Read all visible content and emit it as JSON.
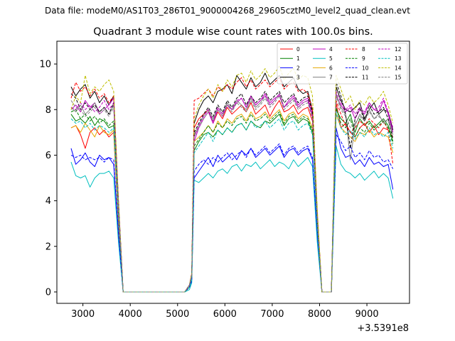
{
  "chart_data": {
    "type": "line",
    "suptitle": "Data file: modeM0/AS1T03_286T01_9000004268_29605cztM0_level2_quad_clean.evt",
    "title": "Quadrant 3 module wise count rates with 100.0s bins.",
    "xlabel": "",
    "ylabel": "",
    "x_offset_label": "+3.5391e8",
    "xlim": [
      2450,
      9900
    ],
    "ylim": [
      -0.5,
      11.0
    ],
    "xticks": [
      3000,
      4000,
      5000,
      6000,
      7000,
      8000,
      9000
    ],
    "yticks": [
      0,
      2,
      4,
      6,
      8,
      10
    ],
    "legend_position": "top-right",
    "x": [
      2750,
      2850,
      2950,
      3050,
      3150,
      3250,
      3350,
      3450,
      3550,
      3650,
      3750,
      3850,
      3950,
      4050,
      4150,
      4250,
      4350,
      4450,
      4550,
      4650,
      4750,
      4850,
      4950,
      5050,
      5150,
      5250,
      5300,
      5350,
      5450,
      5550,
      5650,
      5750,
      5850,
      5950,
      6050,
      6150,
      6250,
      6350,
      6450,
      6550,
      6650,
      6750,
      6850,
      6950,
      7050,
      7150,
      7250,
      7350,
      7450,
      7550,
      7650,
      7750,
      7850,
      7950,
      8050,
      8150,
      8250,
      8350,
      8450,
      8550,
      8650,
      8750,
      8850,
      8950,
      9050,
      9150,
      9250,
      9350,
      9450,
      9550
    ],
    "series": [
      {
        "name": "0",
        "color": "#ff0000",
        "dash": false,
        "values": [
          7.2,
          7.3,
          6.9,
          6.3,
          7.0,
          7.2,
          6.9,
          7.1,
          6.8,
          7.0,
          3.0,
          0,
          0,
          0,
          0,
          0,
          0,
          0,
          0,
          0,
          0,
          0,
          0,
          0,
          0,
          0.2,
          0.7,
          7.2,
          7.6,
          7.8,
          8.0,
          7.4,
          7.9,
          7.6,
          8.1,
          7.8,
          8.0,
          8.2,
          7.9,
          8.3,
          7.8,
          8.0,
          8.2,
          7.7,
          8.1,
          8.4,
          7.9,
          8.0,
          8.2,
          7.8,
          8.0,
          8.1,
          7.5,
          3.0,
          0,
          0,
          0,
          8.3,
          7.2,
          7.4,
          7.0,
          6.8,
          7.2,
          7.4,
          7.0,
          7.3,
          6.9,
          7.2,
          7.1,
          6.8
        ]
      },
      {
        "name": "1",
        "color": "#008000",
        "dash": false,
        "values": [
          7.8,
          7.5,
          7.6,
          7.4,
          7.7,
          7.3,
          7.6,
          7.5,
          7.2,
          7.3,
          3.5,
          0,
          0,
          0,
          0,
          0,
          0,
          0,
          0,
          0,
          0,
          0,
          0,
          0,
          0,
          0.2,
          0.6,
          6.2,
          6.6,
          6.9,
          7.0,
          6.8,
          7.1,
          6.9,
          7.2,
          7.0,
          7.3,
          7.4,
          7.1,
          7.5,
          7.3,
          7.2,
          7.5,
          7.4,
          7.6,
          7.8,
          7.3,
          7.6,
          7.7,
          7.4,
          7.6,
          7.5,
          7.0,
          3.0,
          0,
          0,
          0,
          8.0,
          7.6,
          7.4,
          7.8,
          7.0,
          7.6,
          7.3,
          7.5,
          7.2,
          7.4,
          7.6,
          7.3,
          6.6
        ]
      },
      {
        "name": "2",
        "color": "#0000ff",
        "dash": false,
        "values": [
          6.3,
          5.6,
          5.8,
          6.1,
          5.7,
          5.5,
          6.0,
          5.8,
          5.9,
          5.6,
          2.5,
          0,
          0,
          0,
          0,
          0,
          0,
          0,
          0,
          0,
          0,
          0,
          0,
          0,
          0,
          0.2,
          0.5,
          5.0,
          5.3,
          5.6,
          5.9,
          5.5,
          6.0,
          5.7,
          5.9,
          6.1,
          5.8,
          6.2,
          6.0,
          6.3,
          5.9,
          6.1,
          6.3,
          6.0,
          6.2,
          6.4,
          5.9,
          6.2,
          6.3,
          6.0,
          6.2,
          6.3,
          5.8,
          2.5,
          0,
          0,
          0,
          7.2,
          6.3,
          5.9,
          6.0,
          5.6,
          5.8,
          5.5,
          5.9,
          5.6,
          5.7,
          5.5,
          5.6,
          4.5
        ]
      },
      {
        "name": "3",
        "color": "#000000",
        "dash": false,
        "values": [
          9.0,
          8.6,
          8.9,
          9.1,
          8.5,
          8.8,
          8.3,
          8.6,
          8.2,
          8.6,
          4.0,
          0,
          0,
          0,
          0,
          0,
          0,
          0,
          0,
          0,
          0,
          0,
          0,
          0,
          0,
          0.3,
          0.8,
          7.4,
          8.0,
          8.4,
          8.6,
          8.3,
          8.8,
          8.9,
          9.1,
          8.7,
          9.5,
          9.2,
          8.9,
          9.4,
          9.0,
          9.2,
          9.6,
          9.1,
          9.3,
          9.5,
          9.0,
          9.2,
          9.4,
          8.9,
          8.7,
          8.8,
          8.0,
          3.5,
          0,
          0,
          0,
          9.0,
          8.4,
          8.0,
          7.9,
          8.1,
          8.3,
          7.6,
          8.0,
          8.3,
          7.8,
          8.0,
          7.9,
          7.1
        ]
      },
      {
        "name": "4",
        "color": "#bf00bf",
        "dash": false,
        "values": [
          8.0,
          8.2,
          7.9,
          8.4,
          8.1,
          8.3,
          7.8,
          8.0,
          8.2,
          8.5,
          3.8,
          0,
          0,
          0,
          0,
          0,
          0,
          0,
          0,
          0,
          0,
          0,
          0,
          0,
          0,
          0.3,
          0.7,
          6.6,
          7.2,
          7.6,
          7.9,
          7.4,
          8.0,
          7.7,
          8.2,
          8.0,
          8.3,
          8.5,
          8.1,
          8.6,
          8.2,
          8.4,
          8.7,
          8.3,
          8.5,
          8.6,
          8.1,
          8.4,
          8.6,
          8.2,
          8.4,
          8.5,
          7.8,
          3.2,
          0,
          0,
          0,
          8.6,
          8.2,
          7.9,
          8.1,
          7.6,
          8.0,
          7.8,
          8.3,
          8.0,
          7.9,
          8.4,
          7.8,
          7.0
        ]
      },
      {
        "name": "5",
        "color": "#00bfbf",
        "dash": false,
        "values": [
          5.7,
          5.1,
          5.0,
          5.1,
          4.6,
          5.0,
          5.2,
          5.2,
          5.3,
          5.0,
          2.2,
          0,
          0,
          0,
          0,
          0,
          0,
          0,
          0,
          0,
          0,
          0,
          0,
          0,
          0,
          0.1,
          0.4,
          4.9,
          4.8,
          5.0,
          5.2,
          5.0,
          5.3,
          5.4,
          5.2,
          5.5,
          5.6,
          5.3,
          5.6,
          5.5,
          5.7,
          5.4,
          5.6,
          5.8,
          5.5,
          5.7,
          5.6,
          5.4,
          5.8,
          5.5,
          5.7,
          5.9,
          5.5,
          2.2,
          0,
          0,
          0,
          6.4,
          5.6,
          5.3,
          5.2,
          5.0,
          5.2,
          4.9,
          5.1,
          5.3,
          5.0,
          5.2,
          5.0,
          4.1
        ]
      },
      {
        "name": "6",
        "color": "#e6a800",
        "dash": false,
        "values": [
          7.2,
          7.3,
          7.0,
          7.4,
          7.1,
          6.8,
          7.3,
          7.0,
          6.9,
          7.1,
          3.2,
          0,
          0,
          0,
          0,
          0,
          0,
          0,
          0,
          0,
          0,
          0,
          0,
          0,
          0,
          0.2,
          0.6,
          6.6,
          6.8,
          7.0,
          7.3,
          7.0,
          7.5,
          7.2,
          7.6,
          7.4,
          7.7,
          7.8,
          7.5,
          7.9,
          7.6,
          7.7,
          7.9,
          7.6,
          7.8,
          8.0,
          7.5,
          7.8,
          7.9,
          7.6,
          7.8,
          7.7,
          7.2,
          3.0,
          0,
          0,
          0,
          7.8,
          7.2,
          7.0,
          6.8,
          6.6,
          7.0,
          6.9,
          7.1,
          6.8,
          7.0,
          6.9,
          6.8,
          6.1
        ]
      },
      {
        "name": "7",
        "color": "#808080",
        "dash": false,
        "values": [
          8.1,
          7.9,
          8.2,
          7.8,
          8.0,
          8.3,
          7.9,
          8.1,
          7.8,
          8.2,
          3.8,
          0,
          0,
          0,
          0,
          0,
          0,
          0,
          0,
          0,
          0,
          0,
          0,
          0,
          0,
          0.3,
          0.7,
          6.9,
          7.3,
          7.7,
          8.0,
          7.6,
          8.1,
          7.8,
          8.3,
          8.0,
          8.4,
          8.2,
          8.0,
          8.5,
          8.1,
          8.3,
          8.6,
          8.2,
          8.4,
          8.7,
          8.1,
          8.3,
          8.5,
          8.1,
          8.3,
          8.4,
          7.7,
          3.3,
          0,
          0,
          0,
          8.7,
          8.1,
          7.8,
          5.8,
          7.3,
          7.8,
          7.5,
          8.0,
          7.6,
          7.8,
          7.4,
          7.6,
          6.9
        ]
      },
      {
        "name": "8",
        "color": "#ff0000",
        "dash": true,
        "values": [
          8.5,
          9.2,
          8.8,
          9.0,
          8.6,
          8.9,
          8.5,
          8.7,
          8.3,
          8.6,
          4.0,
          0,
          0,
          0,
          0,
          0,
          0,
          0,
          0,
          0,
          0,
          0,
          0,
          0,
          0,
          0.3,
          0.8,
          8.4,
          8.5,
          8.7,
          8.9,
          8.6,
          9.0,
          8.8,
          9.1,
          8.9,
          9.2,
          9.4,
          9.0,
          9.3,
          8.9,
          9.1,
          9.3,
          9.0,
          9.2,
          9.4,
          8.9,
          9.1,
          9.2,
          8.8,
          8.9,
          8.7,
          8.0,
          3.5,
          0,
          0,
          0,
          8.4,
          7.8,
          7.3,
          7.0,
          7.2,
          7.5,
          7.3,
          7.6,
          7.4,
          7.2,
          7.5,
          7.1,
          5.6
        ]
      },
      {
        "name": "9",
        "color": "#008000",
        "dash": true,
        "values": [
          7.9,
          8.0,
          7.6,
          7.8,
          7.5,
          7.7,
          7.4,
          7.6,
          7.3,
          7.5,
          3.5,
          0,
          0,
          0,
          0,
          0,
          0,
          0,
          0,
          0,
          0,
          0,
          0,
          0,
          0,
          0.2,
          0.6,
          6.4,
          6.7,
          7.0,
          7.3,
          7.0,
          7.4,
          7.2,
          7.5,
          7.3,
          7.6,
          7.7,
          7.4,
          7.8,
          7.5,
          7.6,
          7.8,
          7.5,
          7.7,
          7.9,
          7.4,
          7.7,
          7.8,
          7.5,
          7.7,
          7.6,
          7.1,
          3.0,
          0,
          0,
          0,
          8.1,
          7.4,
          7.2,
          7.6,
          6.8,
          7.2,
          7.0,
          7.4,
          7.1,
          7.3,
          7.5,
          7.2,
          6.5
        ]
      },
      {
        "name": "10",
        "color": "#0000ff",
        "dash": true,
        "values": [
          6.0,
          5.9,
          6.0,
          5.8,
          5.9,
          5.8,
          5.9,
          5.7,
          5.9,
          5.8,
          2.6,
          0,
          0,
          0,
          0,
          0,
          0,
          0,
          0,
          0,
          0,
          0,
          0,
          0,
          0,
          0.2,
          0.5,
          5.3,
          5.6,
          5.8,
          5.6,
          5.9,
          5.7,
          5.9,
          6.1,
          5.8,
          6.0,
          6.2,
          5.9,
          6.3,
          6.0,
          6.2,
          6.4,
          6.1,
          6.3,
          6.5,
          6.0,
          6.3,
          6.4,
          6.1,
          6.3,
          6.4,
          5.9,
          2.6,
          0,
          0,
          0,
          6.9,
          6.6,
          6.2,
          6.4,
          5.9,
          6.1,
          5.8,
          6.2,
          5.9,
          6.0,
          5.7,
          5.8,
          5.4
        ]
      },
      {
        "name": "11",
        "color": "#000000",
        "dash": true,
        "values": [
          8.7,
          8.5,
          8.0,
          8.3,
          8.0,
          8.2,
          7.9,
          8.1,
          7.8,
          8.3,
          3.9,
          0,
          0,
          0,
          0,
          0,
          0,
          0,
          0,
          0,
          0,
          0,
          0,
          0,
          0,
          0.3,
          0.7,
          7.0,
          7.4,
          7.8,
          8.1,
          7.7,
          8.2,
          7.9,
          8.4,
          8.1,
          8.5,
          8.7,
          8.2,
          8.6,
          8.3,
          8.5,
          8.8,
          8.4,
          8.6,
          8.8,
          8.3,
          8.5,
          8.7,
          8.3,
          8.5,
          8.6,
          7.9,
          3.4,
          0,
          0,
          0,
          9.2,
          8.6,
          7.8,
          6.3,
          7.6,
          8.1,
          7.5,
          8.2,
          7.8,
          7.9,
          8.1,
          7.6,
          6.7
        ]
      },
      {
        "name": "12",
        "color": "#bf00bf",
        "dash": true,
        "values": [
          8.1,
          8.0,
          8.3,
          8.0,
          8.2,
          7.9,
          8.1,
          8.4,
          8.0,
          8.3,
          3.9,
          0,
          0,
          0,
          0,
          0,
          0,
          0,
          0,
          0,
          0,
          0,
          0,
          0,
          0,
          0.3,
          0.7,
          6.8,
          7.3,
          7.7,
          8.0,
          7.5,
          8.1,
          7.8,
          8.2,
          8.0,
          8.4,
          8.5,
          8.1,
          8.6,
          8.2,
          8.4,
          8.6,
          8.2,
          8.4,
          8.7,
          8.1,
          8.3,
          8.5,
          8.1,
          8.3,
          8.4,
          7.7,
          3.3,
          0,
          0,
          0,
          8.8,
          8.3,
          8.0,
          8.2,
          7.8,
          8.1,
          7.9,
          8.3,
          8.0,
          8.1,
          8.5,
          7.9,
          7.2
        ]
      },
      {
        "name": "13",
        "color": "#00bfbf",
        "dash": true,
        "values": [
          7.6,
          7.4,
          7.5,
          7.2,
          7.4,
          7.1,
          7.3,
          7.2,
          7.0,
          7.2,
          3.3,
          0,
          0,
          0,
          0,
          0,
          0,
          0,
          0,
          0,
          0,
          0,
          0,
          0,
          0,
          0.2,
          0.6,
          6.1,
          6.4,
          6.7,
          7.0,
          6.6,
          7.1,
          6.9,
          7.2,
          7.0,
          7.3,
          7.4,
          7.1,
          7.5,
          7.2,
          7.3,
          7.5,
          7.2,
          7.4,
          7.6,
          7.1,
          7.4,
          7.5,
          7.1,
          7.3,
          7.4,
          6.9,
          2.9,
          0,
          0,
          0,
          7.9,
          7.2,
          6.9,
          7.1,
          6.7,
          7.0,
          6.8,
          7.2,
          6.9,
          7.0,
          6.8,
          7.0,
          6.3
        ]
      },
      {
        "name": "14",
        "color": "#bfbf00",
        "dash": true,
        "values": [
          8.0,
          8.6,
          8.3,
          9.5,
          8.7,
          9.0,
          8.8,
          9.1,
          9.3,
          8.8,
          4.1,
          0,
          0,
          0,
          0,
          0,
          0,
          0,
          0,
          0,
          0,
          0,
          0,
          0,
          0,
          0.3,
          0.8,
          7.6,
          8.2,
          8.6,
          8.9,
          8.5,
          9.1,
          8.8,
          9.3,
          9.0,
          9.5,
          9.6,
          9.2,
          9.7,
          9.3,
          9.5,
          9.8,
          9.4,
          9.6,
          9.9,
          9.3,
          9.6,
          9.8,
          9.3,
          9.5,
          9.4,
          8.6,
          3.7,
          0,
          0,
          0,
          9.5,
          8.9,
          8.3,
          8.6,
          8.0,
          8.4,
          8.2,
          8.6,
          8.3,
          8.5,
          8.8,
          8.2,
          7.4
        ]
      },
      {
        "name": "15",
        "color": "#808080",
        "dash": true,
        "values": [
          8.4,
          8.1,
          8.0,
          7.7,
          7.9,
          8.1,
          7.8,
          8.0,
          7.7,
          8.1,
          3.8,
          0,
          0,
          0,
          0,
          0,
          0,
          0,
          0,
          0,
          0,
          0,
          0,
          0,
          0,
          0.3,
          0.7,
          6.8,
          7.2,
          7.6,
          7.9,
          7.5,
          8.0,
          7.7,
          8.2,
          7.9,
          8.3,
          8.1,
          7.9,
          8.4,
          8.0,
          8.2,
          8.5,
          8.1,
          8.3,
          8.6,
          8.0,
          8.2,
          8.4,
          8.0,
          8.2,
          8.3,
          7.6,
          3.2,
          0,
          0,
          0,
          8.6,
          8.0,
          7.7,
          7.2,
          7.4,
          7.7,
          7.5,
          7.9,
          7.6,
          7.7,
          7.5,
          7.5,
          6.9
        ]
      }
    ]
  }
}
